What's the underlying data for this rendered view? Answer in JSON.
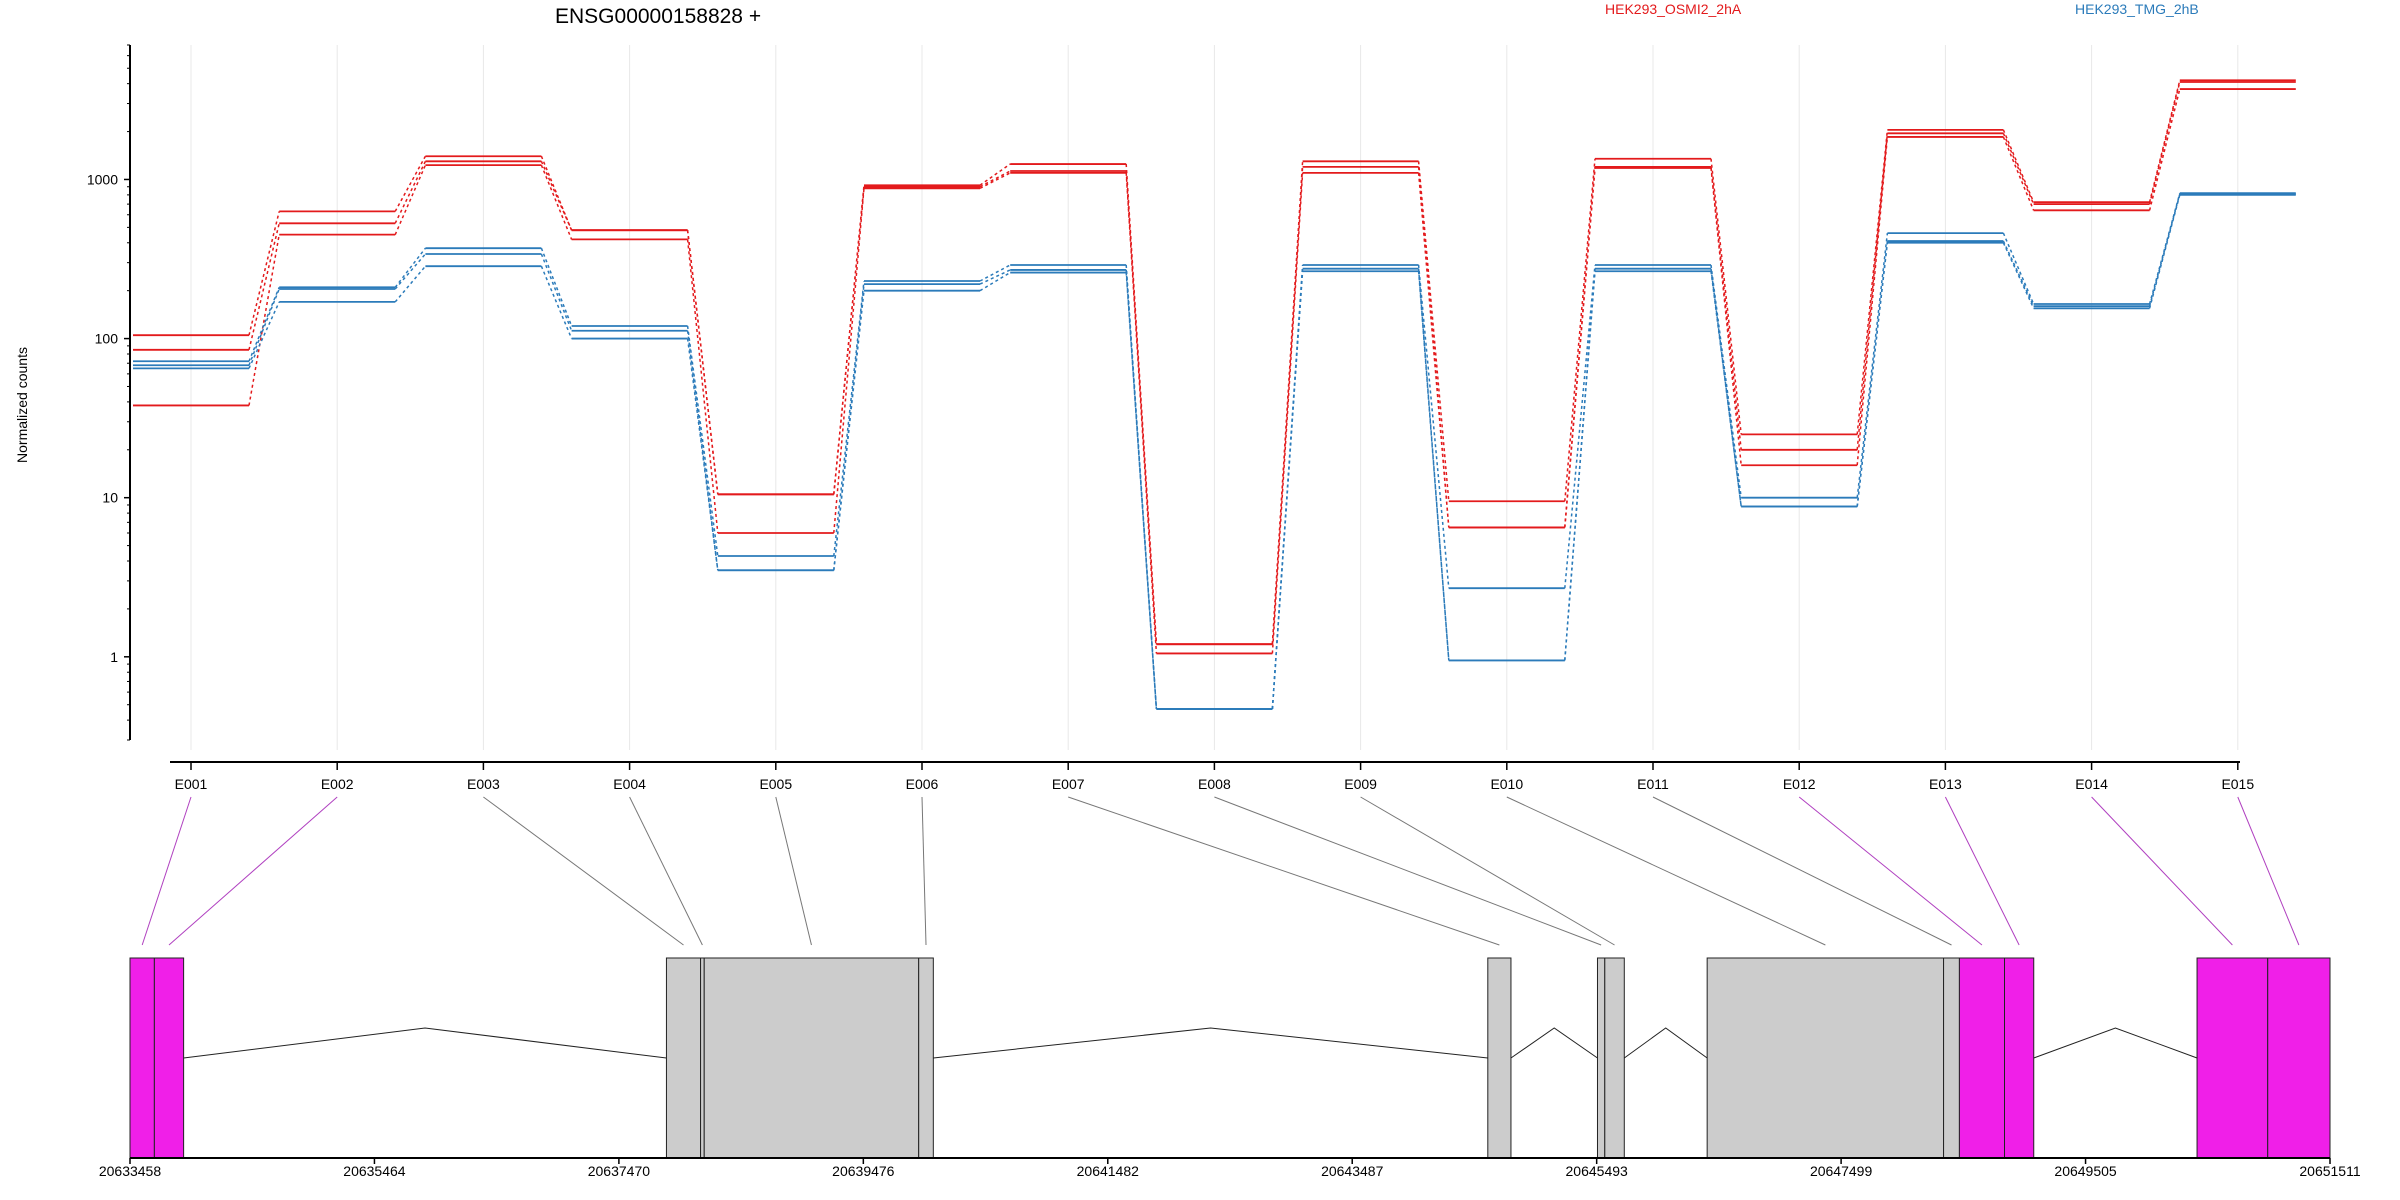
{
  "chart_data": {
    "type": "line",
    "title": "ENSG00000158828 +",
    "ylabel": "Normalized counts",
    "y_scale": "log",
    "ylim": [
      0.3,
      7000
    ],
    "yticks": [
      1,
      10,
      100,
      1000
    ],
    "ytick_labels": [
      "1",
      "10",
      "100",
      "1000"
    ],
    "grid": "vertical",
    "legend_placement": "top",
    "categories": [
      "E001",
      "E002",
      "E003",
      "E004",
      "E005",
      "E006",
      "E007",
      "E008",
      "E009",
      "E010",
      "E011",
      "E012",
      "E013",
      "E014",
      "E015"
    ],
    "groups": [
      {
        "label": "HEK293_OSMI2_2hA",
        "color": "#e31a1c"
      },
      {
        "label": "HEK293_TMG_2hB",
        "color": "#2b7bba"
      }
    ],
    "series": [
      {
        "group": 0,
        "values": [
          105,
          630,
          1400,
          480,
          10.5,
          920,
          1250,
          1.2,
          1300,
          9.5,
          1350,
          25,
          2050,
          720,
          4200
        ]
      },
      {
        "group": 0,
        "values": [
          85,
          530,
          1300,
          480,
          10.5,
          900,
          1130,
          1.2,
          1200,
          6.5,
          1200,
          20,
          1950,
          700,
          4100
        ]
      },
      {
        "group": 0,
        "values": [
          38,
          450,
          1230,
          420,
          6,
          880,
          1100,
          1.05,
          1100,
          6.5,
          1180,
          16,
          1850,
          640,
          3700
        ]
      },
      {
        "group": 1,
        "values": [
          72,
          210,
          370,
          120,
          4.3,
          230,
          290,
          0.47,
          290,
          2.7,
          290,
          10,
          460,
          165,
          820
        ]
      },
      {
        "group": 1,
        "values": [
          68,
          205,
          340,
          112,
          3.5,
          220,
          270,
          0.47,
          275,
          0.95,
          275,
          8.8,
          410,
          160,
          810
        ]
      },
      {
        "group": 1,
        "values": [
          65,
          170,
          285,
          100,
          3.5,
          200,
          260,
          0.47,
          265,
          0.95,
          265,
          8.8,
          400,
          155,
          800
        ]
      }
    ],
    "gene_model": {
      "coord_start": 20633458,
      "coord_end": 20651511,
      "coord_ticks": [
        "20633458",
        "20635464",
        "20637470",
        "20639476",
        "20641482",
        "20643487",
        "20645493",
        "20647499",
        "20649505",
        "20651511"
      ],
      "exonic_parts": [
        {
          "id": "E001",
          "start": 20633458,
          "end": 20633658,
          "highlight": true
        },
        {
          "id": "E002",
          "start": 20633658,
          "end": 20633898,
          "highlight": true
        },
        {
          "id": "E003",
          "start": 20637860,
          "end": 20638140,
          "highlight": false
        },
        {
          "id": "E004",
          "start": 20638140,
          "end": 20638170,
          "highlight": false
        },
        {
          "id": "E005",
          "start": 20638170,
          "end": 20639930,
          "highlight": false
        },
        {
          "id": "E006",
          "start": 20639930,
          "end": 20640050,
          "highlight": false
        },
        {
          "id": "E007",
          "start": 20644600,
          "end": 20644790,
          "highlight": false
        },
        {
          "id": "E008",
          "start": 20645500,
          "end": 20645560,
          "highlight": false
        },
        {
          "id": "E009",
          "start": 20645560,
          "end": 20645720,
          "highlight": false
        },
        {
          "id": "E010",
          "start": 20646400,
          "end": 20648340,
          "highlight": false
        },
        {
          "id": "E011",
          "start": 20648340,
          "end": 20648470,
          "highlight": false
        },
        {
          "id": "E012",
          "start": 20648470,
          "end": 20648840,
          "highlight": true
        },
        {
          "id": "E013",
          "start": 20648840,
          "end": 20649080,
          "highlight": true
        },
        {
          "id": "E014",
          "start": 20650420,
          "end": 20651000,
          "highlight": true
        },
        {
          "id": "E015",
          "start": 20651000,
          "end": 20651511,
          "highlight": true
        }
      ],
      "introns": [
        {
          "start": 20633898,
          "end": 20637860
        },
        {
          "start": 20640050,
          "end": 20644600
        },
        {
          "start": 20644790,
          "end": 20645500
        },
        {
          "start": 20645720,
          "end": 20646400
        },
        {
          "start": 20649080,
          "end": 20650420
        }
      ]
    }
  },
  "colors": {
    "highlight_exon": "#f01fe8",
    "exon": "#cccccc",
    "connector_highlight": "#b040c0",
    "connector": "#777777"
  }
}
